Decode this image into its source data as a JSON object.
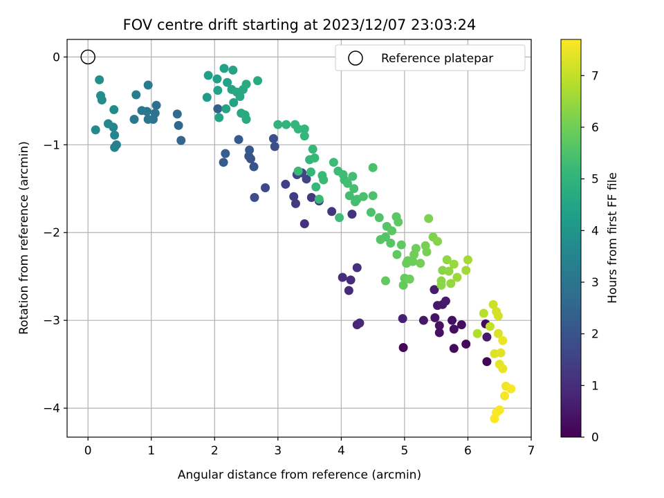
{
  "chart_data": {
    "type": "scatter",
    "title": "FOV centre drift starting at 2023/12/07 23:03:24",
    "xlabel": "Angular distance from reference (arcmin)",
    "ylabel": "Rotation from reference (arcmin)",
    "xlim": [
      -0.33,
      7.0
    ],
    "ylim": [
      -4.33,
      0.2
    ],
    "xticks": [
      "0",
      "1",
      "2",
      "3",
      "4",
      "5",
      "6",
      "7"
    ],
    "yticks": [
      "0",
      "−1",
      "−2",
      "−3",
      "−4"
    ],
    "grid": true,
    "legend": {
      "position": "top-right",
      "entries": [
        "Reference platepar"
      ]
    },
    "reference_point": {
      "x": 0.0,
      "y": 0.0
    },
    "colorbar": {
      "label": "Hours from first FF file",
      "range": [
        0,
        7.7
      ],
      "ticks": [
        "0",
        "1",
        "2",
        "3",
        "4",
        "5",
        "6",
        "7"
      ],
      "colormap": [
        "#440154",
        "#482878",
        "#3e4989",
        "#31688e",
        "#26828e",
        "#1f9e89",
        "#35b779",
        "#6ece58",
        "#b5de2b",
        "#fde725"
      ]
    },
    "points": [
      {
        "x": 4.98,
        "y": -3.31,
        "h": 0.1
      },
      {
        "x": 5.78,
        "y": -3.32,
        "h": 0.2
      },
      {
        "x": 5.97,
        "y": -3.27,
        "h": 0.15
      },
      {
        "x": 6.3,
        "y": -3.47,
        "h": 0.1
      },
      {
        "x": 6.28,
        "y": -3.04,
        "h": 0.2
      },
      {
        "x": 5.9,
        "y": -3.05,
        "h": 0.25
      },
      {
        "x": 5.78,
        "y": -3.1,
        "h": 0.3
      },
      {
        "x": 5.75,
        "y": -3.0,
        "h": 0.3
      },
      {
        "x": 5.55,
        "y": -3.14,
        "h": 0.35
      },
      {
        "x": 5.55,
        "y": -3.06,
        "h": 0.35
      },
      {
        "x": 5.48,
        "y": -2.97,
        "h": 0.4
      },
      {
        "x": 5.3,
        "y": -3.0,
        "h": 0.45
      },
      {
        "x": 5.52,
        "y": -2.83,
        "h": 0.5
      },
      {
        "x": 5.6,
        "y": -2.82,
        "h": 0.5
      },
      {
        "x": 5.65,
        "y": -2.78,
        "h": 0.55
      },
      {
        "x": 5.47,
        "y": -2.65,
        "h": 0.6
      },
      {
        "x": 6.3,
        "y": -3.19,
        "h": 0.6
      },
      {
        "x": 4.97,
        "y": -2.98,
        "h": 0.7
      },
      {
        "x": 4.25,
        "y": -3.05,
        "h": 0.8
      },
      {
        "x": 4.29,
        "y": -3.03,
        "h": 0.85
      },
      {
        "x": 4.12,
        "y": -2.66,
        "h": 0.9
      },
      {
        "x": 4.15,
        "y": -2.54,
        "h": 0.95
      },
      {
        "x": 4.02,
        "y": -2.51,
        "h": 1.0
      },
      {
        "x": 4.25,
        "y": -2.4,
        "h": 1.05
      },
      {
        "x": 3.42,
        "y": -1.9,
        "h": 1.1
      },
      {
        "x": 4.17,
        "y": -1.79,
        "h": 1.15
      },
      {
        "x": 3.85,
        "y": -1.76,
        "h": 1.2
      },
      {
        "x": 3.65,
        "y": -1.64,
        "h": 1.25
      },
      {
        "x": 3.53,
        "y": -1.6,
        "h": 1.3
      },
      {
        "x": 3.28,
        "y": -1.67,
        "h": 1.35
      },
      {
        "x": 3.25,
        "y": -1.59,
        "h": 1.4
      },
      {
        "x": 3.12,
        "y": -1.45,
        "h": 1.5
      },
      {
        "x": 3.45,
        "y": -1.39,
        "h": 1.55
      },
      {
        "x": 3.38,
        "y": -1.32,
        "h": 1.6
      },
      {
        "x": 3.3,
        "y": -1.34,
        "h": 1.65
      },
      {
        "x": 2.8,
        "y": -1.49,
        "h": 1.7
      },
      {
        "x": 2.63,
        "y": -1.6,
        "h": 1.8
      },
      {
        "x": 2.95,
        "y": -1.02,
        "h": 1.85
      },
      {
        "x": 2.93,
        "y": -0.93,
        "h": 1.9
      },
      {
        "x": 2.62,
        "y": -1.25,
        "h": 1.95
      },
      {
        "x": 2.57,
        "y": -1.16,
        "h": 2.0
      },
      {
        "x": 2.54,
        "y": -1.13,
        "h": 2.05
      },
      {
        "x": 2.55,
        "y": -1.06,
        "h": 2.1
      },
      {
        "x": 2.38,
        "y": -0.94,
        "h": 2.15
      },
      {
        "x": 2.14,
        "y": -1.2,
        "h": 2.2
      },
      {
        "x": 2.17,
        "y": -1.1,
        "h": 2.25
      },
      {
        "x": 2.05,
        "y": -0.59,
        "h": 2.3
      },
      {
        "x": 1.47,
        "y": -0.95,
        "h": 2.5
      },
      {
        "x": 1.43,
        "y": -0.78,
        "h": 2.6
      },
      {
        "x": 1.41,
        "y": -0.65,
        "h": 2.7
      },
      {
        "x": 1.08,
        "y": -0.55,
        "h": 2.8
      },
      {
        "x": 1.06,
        "y": -0.64,
        "h": 2.9
      },
      {
        "x": 1.03,
        "y": -0.71,
        "h": 2.9
      },
      {
        "x": 0.95,
        "y": -0.71,
        "h": 3.0
      },
      {
        "x": 0.93,
        "y": -0.62,
        "h": 3.0
      },
      {
        "x": 0.85,
        "y": -0.61,
        "h": 3.1
      },
      {
        "x": 0.73,
        "y": -0.71,
        "h": 3.1
      },
      {
        "x": 0.95,
        "y": -0.32,
        "h": 3.2
      },
      {
        "x": 0.76,
        "y": -0.43,
        "h": 3.3
      },
      {
        "x": 0.45,
        "y": -1.0,
        "h": 3.4
      },
      {
        "x": 0.42,
        "y": -1.03,
        "h": 3.4
      },
      {
        "x": 0.42,
        "y": -0.89,
        "h": 3.5
      },
      {
        "x": 0.4,
        "y": -0.8,
        "h": 3.5
      },
      {
        "x": 0.32,
        "y": -0.76,
        "h": 3.6
      },
      {
        "x": 0.12,
        "y": -0.83,
        "h": 3.6
      },
      {
        "x": 0.41,
        "y": -0.6,
        "h": 3.7
      },
      {
        "x": 0.22,
        "y": -0.49,
        "h": 3.7
      },
      {
        "x": 0.2,
        "y": -0.44,
        "h": 3.8
      },
      {
        "x": 0.18,
        "y": -0.26,
        "h": 3.8
      },
      {
        "x": 1.88,
        "y": -0.46,
        "h": 4.2
      },
      {
        "x": 1.9,
        "y": -0.21,
        "h": 4.3
      },
      {
        "x": 2.04,
        "y": -0.25,
        "h": 4.3
      },
      {
        "x": 2.05,
        "y": -0.38,
        "h": 4.4
      },
      {
        "x": 2.15,
        "y": -0.13,
        "h": 4.4
      },
      {
        "x": 2.2,
        "y": -0.29,
        "h": 4.4
      },
      {
        "x": 2.18,
        "y": -0.59,
        "h": 4.5
      },
      {
        "x": 2.07,
        "y": -0.69,
        "h": 4.5
      },
      {
        "x": 2.27,
        "y": -0.37,
        "h": 4.5
      },
      {
        "x": 2.3,
        "y": -0.52,
        "h": 4.5
      },
      {
        "x": 2.29,
        "y": -0.15,
        "h": 4.5
      },
      {
        "x": 2.35,
        "y": -0.4,
        "h": 4.6
      },
      {
        "x": 2.4,
        "y": -0.45,
        "h": 4.6
      },
      {
        "x": 2.42,
        "y": -0.64,
        "h": 4.6
      },
      {
        "x": 2.45,
        "y": -0.37,
        "h": 4.6
      },
      {
        "x": 2.48,
        "y": -0.66,
        "h": 4.7
      },
      {
        "x": 2.5,
        "y": -0.31,
        "h": 4.7
      },
      {
        "x": 2.5,
        "y": -0.71,
        "h": 4.7
      },
      {
        "x": 2.68,
        "y": -0.27,
        "h": 4.7
      },
      {
        "x": 3.0,
        "y": -0.77,
        "h": 5.0
      },
      {
        "x": 3.13,
        "y": -0.77,
        "h": 5.0
      },
      {
        "x": 3.27,
        "y": -0.77,
        "h": 5.05
      },
      {
        "x": 3.32,
        "y": -0.82,
        "h": 5.05
      },
      {
        "x": 3.42,
        "y": -0.82,
        "h": 5.05
      },
      {
        "x": 3.42,
        "y": -0.9,
        "h": 5.1
      },
      {
        "x": 3.5,
        "y": -1.17,
        "h": 5.1
      },
      {
        "x": 3.52,
        "y": -1.31,
        "h": 5.1
      },
      {
        "x": 3.55,
        "y": -1.05,
        "h": 5.15
      },
      {
        "x": 3.58,
        "y": -1.15,
        "h": 5.15
      },
      {
        "x": 3.6,
        "y": -1.48,
        "h": 5.15
      },
      {
        "x": 3.65,
        "y": -1.62,
        "h": 5.2
      },
      {
        "x": 3.7,
        "y": -1.35,
        "h": 5.2
      },
      {
        "x": 3.72,
        "y": -1.4,
        "h": 5.2
      },
      {
        "x": 3.32,
        "y": -1.3,
        "h": 5.2
      },
      {
        "x": 3.88,
        "y": -1.2,
        "h": 5.25
      },
      {
        "x": 3.95,
        "y": -1.3,
        "h": 5.25
      },
      {
        "x": 3.97,
        "y": -1.83,
        "h": 5.3
      },
      {
        "x": 4.03,
        "y": -1.34,
        "h": 5.3
      },
      {
        "x": 4.05,
        "y": -1.4,
        "h": 5.3
      },
      {
        "x": 4.1,
        "y": -1.44,
        "h": 5.35
      },
      {
        "x": 4.13,
        "y": -1.58,
        "h": 5.35
      },
      {
        "x": 4.18,
        "y": -1.36,
        "h": 5.35
      },
      {
        "x": 4.2,
        "y": -1.5,
        "h": 5.4
      },
      {
        "x": 4.22,
        "y": -1.65,
        "h": 5.4
      },
      {
        "x": 4.25,
        "y": -1.62,
        "h": 5.4
      },
      {
        "x": 4.35,
        "y": -1.59,
        "h": 5.45
      },
      {
        "x": 4.5,
        "y": -1.26,
        "h": 5.45
      },
      {
        "x": 4.5,
        "y": -1.58,
        "h": 5.5
      },
      {
        "x": 4.47,
        "y": -1.77,
        "h": 5.5
      },
      {
        "x": 4.6,
        "y": -1.83,
        "h": 5.55
      },
      {
        "x": 4.62,
        "y": -2.08,
        "h": 5.6
      },
      {
        "x": 4.7,
        "y": -2.05,
        "h": 5.6
      },
      {
        "x": 4.72,
        "y": -1.93,
        "h": 5.65
      },
      {
        "x": 4.78,
        "y": -2.12,
        "h": 5.65
      },
      {
        "x": 4.8,
        "y": -1.98,
        "h": 5.7
      },
      {
        "x": 4.87,
        "y": -1.82,
        "h": 5.7
      },
      {
        "x": 4.9,
        "y": -1.88,
        "h": 5.75
      },
      {
        "x": 4.88,
        "y": -2.25,
        "h": 5.75
      },
      {
        "x": 4.95,
        "y": -2.14,
        "h": 5.8
      },
      {
        "x": 4.7,
        "y": -2.55,
        "h": 5.8
      },
      {
        "x": 4.98,
        "y": -2.6,
        "h": 5.85
      },
      {
        "x": 5.0,
        "y": -2.52,
        "h": 5.85
      },
      {
        "x": 5.03,
        "y": -2.35,
        "h": 5.9
      },
      {
        "x": 5.05,
        "y": -2.32,
        "h": 5.9
      },
      {
        "x": 5.08,
        "y": -2.53,
        "h": 5.95
      },
      {
        "x": 5.13,
        "y": -2.33,
        "h": 5.95
      },
      {
        "x": 5.15,
        "y": -2.25,
        "h": 6.0
      },
      {
        "x": 5.18,
        "y": -2.18,
        "h": 6.0
      },
      {
        "x": 5.25,
        "y": -2.35,
        "h": 6.05
      },
      {
        "x": 5.33,
        "y": -2.15,
        "h": 6.1
      },
      {
        "x": 5.35,
        "y": -2.22,
        "h": 6.1
      },
      {
        "x": 5.38,
        "y": -1.84,
        "h": 6.15
      },
      {
        "x": 5.45,
        "y": -2.05,
        "h": 6.2
      },
      {
        "x": 5.52,
        "y": -2.1,
        "h": 6.25
      },
      {
        "x": 5.6,
        "y": -2.43,
        "h": 6.3
      },
      {
        "x": 5.58,
        "y": -2.55,
        "h": 6.35
      },
      {
        "x": 5.58,
        "y": -2.6,
        "h": 6.35
      },
      {
        "x": 5.67,
        "y": -2.31,
        "h": 6.4
      },
      {
        "x": 5.7,
        "y": -2.44,
        "h": 6.4
      },
      {
        "x": 5.73,
        "y": -2.58,
        "h": 6.45
      },
      {
        "x": 5.78,
        "y": -2.36,
        "h": 6.5
      },
      {
        "x": 5.83,
        "y": -2.51,
        "h": 6.55
      },
      {
        "x": 5.97,
        "y": -2.43,
        "h": 6.6
      },
      {
        "x": 6.0,
        "y": -2.31,
        "h": 6.65
      },
      {
        "x": 6.15,
        "y": -3.15,
        "h": 6.8
      },
      {
        "x": 6.25,
        "y": -2.92,
        "h": 6.9
      },
      {
        "x": 6.35,
        "y": -3.07,
        "h": 7.0
      },
      {
        "x": 6.4,
        "y": -2.82,
        "h": 7.1
      },
      {
        "x": 6.45,
        "y": -2.9,
        "h": 7.15
      },
      {
        "x": 6.48,
        "y": -2.95,
        "h": 7.2
      },
      {
        "x": 6.48,
        "y": -3.15,
        "h": 7.25
      },
      {
        "x": 6.42,
        "y": -3.38,
        "h": 7.3
      },
      {
        "x": 6.52,
        "y": -3.37,
        "h": 7.35
      },
      {
        "x": 6.5,
        "y": -3.5,
        "h": 7.4
      },
      {
        "x": 6.55,
        "y": -3.55,
        "h": 7.45
      },
      {
        "x": 6.55,
        "y": -3.23,
        "h": 7.5
      },
      {
        "x": 6.6,
        "y": -3.75,
        "h": 7.55
      },
      {
        "x": 6.58,
        "y": -3.86,
        "h": 7.6
      },
      {
        "x": 6.68,
        "y": -3.78,
        "h": 7.6
      },
      {
        "x": 6.5,
        "y": -4.02,
        "h": 7.65
      },
      {
        "x": 6.45,
        "y": -4.05,
        "h": 7.65
      },
      {
        "x": 6.42,
        "y": -4.12,
        "h": 7.7
      }
    ]
  }
}
